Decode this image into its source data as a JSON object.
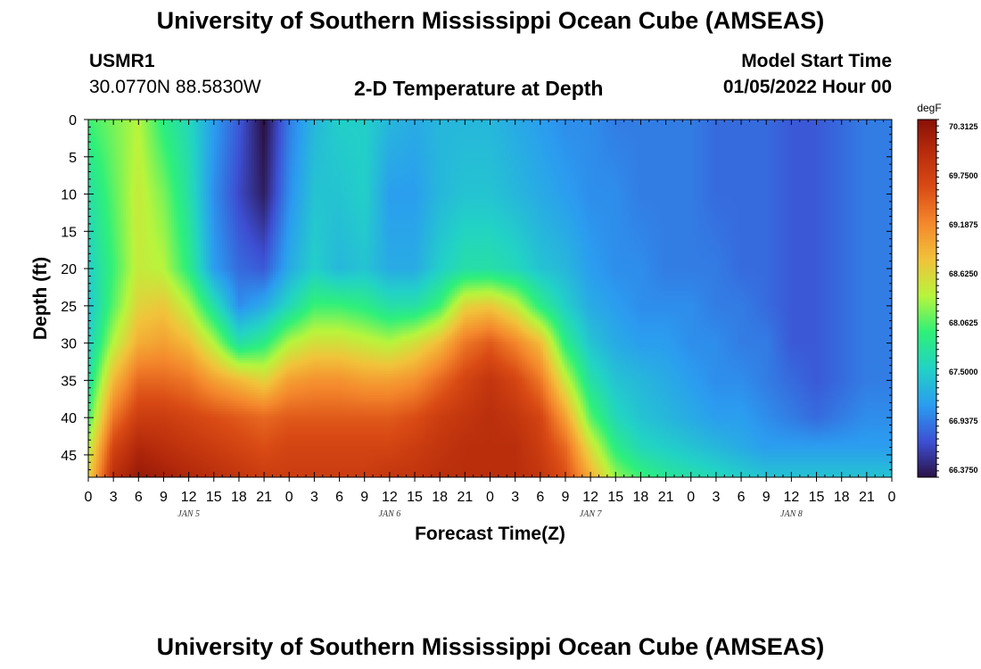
{
  "header": {
    "title": "University of Southern Mississippi Ocean Cube (AMSEAS)",
    "station": "USMR1",
    "coords": "30.0770N  88.5830W",
    "subtitle": "2-D Temperature at Depth",
    "model_label": "Model Start Time",
    "model_time": "01/05/2022 Hour 00"
  },
  "footer": {
    "title": "University of Southern Mississippi Ocean Cube (AMSEAS)"
  },
  "chart_data": {
    "type": "heatmap",
    "title": "2-D Temperature at Depth",
    "xlabel": "Forecast Time(Z)",
    "ylabel": "Depth (ft)",
    "colorbar_unit": "degF",
    "x_unit": "hours since 01/05/2022 00Z",
    "xlim": [
      0,
      96
    ],
    "ylim": [
      0,
      48
    ],
    "y_inverted": true,
    "x_ticks": [
      0,
      3,
      6,
      9,
      12,
      15,
      18,
      21,
      24,
      27,
      30,
      33,
      36,
      39,
      42,
      45,
      48,
      51,
      54,
      57,
      60,
      63,
      66,
      69,
      72,
      75,
      78,
      81,
      84,
      87,
      90,
      93,
      96
    ],
    "x_tick_labels": [
      "0",
      "3",
      "6",
      "9",
      "12",
      "15",
      "18",
      "21",
      "0",
      "3",
      "6",
      "9",
      "12",
      "15",
      "18",
      "21",
      "0",
      "3",
      "6",
      "9",
      "12",
      "15",
      "18",
      "21",
      "0",
      "3",
      "6",
      "9",
      "12",
      "15",
      "18",
      "21",
      "0"
    ],
    "day_labels": [
      {
        "x": 12,
        "label": "JAN 5"
      },
      {
        "x": 36,
        "label": "JAN 6"
      },
      {
        "x": 60,
        "label": "JAN 7"
      },
      {
        "x": 84,
        "label": "JAN 8"
      }
    ],
    "y_ticks": [
      0,
      5,
      10,
      15,
      20,
      25,
      30,
      35,
      40,
      45
    ],
    "y_tick_labels": [
      "0",
      "5",
      "10",
      "15",
      "20",
      "25",
      "30",
      "35",
      "40",
      "45"
    ],
    "colorbar_levels": [
      "70.3125",
      "69.7500",
      "69.1875",
      "68.6250",
      "68.0625",
      "67.5000",
      "66.9375",
      "66.3750"
    ],
    "colorbar_values": [
      70.3125,
      69.75,
      69.1875,
      68.625,
      68.0625,
      67.5,
      66.9375,
      66.375
    ],
    "colorscale": [
      "#2a0f3f",
      "#3d4fd3",
      "#2b9cf0",
      "#22d2c6",
      "#2ef07a",
      "#b8f53c",
      "#f2c23a",
      "#f4872c",
      "#d94a14",
      "#b52a0b",
      "#7e0b06"
    ],
    "vrange": [
      66.1,
      70.5
    ],
    "temperature_knots": {
      "hours": [
        0,
        3,
        6,
        9,
        12,
        15,
        18,
        21,
        24,
        27,
        30,
        33,
        36,
        39,
        42,
        45,
        48,
        51,
        54,
        57,
        60,
        63,
        66,
        69,
        72,
        75,
        78,
        81,
        84,
        87,
        90,
        93,
        96
      ],
      "depths": [
        0,
        10,
        20,
        25,
        30,
        35,
        40,
        44,
        48
      ],
      "values": [
        [
          67.9,
          67.6,
          67.4,
          67.3,
          67.4,
          67.6,
          67.9,
          68.3,
          68.6
        ],
        [
          68.1,
          68.0,
          67.9,
          68.0,
          68.3,
          68.8,
          69.3,
          69.7,
          70.0
        ],
        [
          68.3,
          68.4,
          68.4,
          68.6,
          68.9,
          69.4,
          69.8,
          70.1,
          70.3
        ],
        [
          67.8,
          68.1,
          68.3,
          68.7,
          69.0,
          69.4,
          69.8,
          70.0,
          70.2
        ],
        [
          67.5,
          67.6,
          67.8,
          68.3,
          68.8,
          69.3,
          69.7,
          69.9,
          70.1
        ],
        [
          67.0,
          66.9,
          67.0,
          67.6,
          68.3,
          69.0,
          69.6,
          69.8,
          70.0
        ],
        [
          66.6,
          66.5,
          66.7,
          66.9,
          67.6,
          68.8,
          69.5,
          69.7,
          69.9
        ],
        [
          66.1,
          66.2,
          66.6,
          67.1,
          67.8,
          68.6,
          69.4,
          69.6,
          69.8
        ],
        [
          66.8,
          66.9,
          67.1,
          67.5,
          68.3,
          69.0,
          69.5,
          69.7,
          69.8
        ],
        [
          67.2,
          67.3,
          67.4,
          67.9,
          68.5,
          69.1,
          69.5,
          69.7,
          69.8
        ],
        [
          67.4,
          67.3,
          67.2,
          67.9,
          68.5,
          69.1,
          69.5,
          69.7,
          69.8
        ],
        [
          67.4,
          67.4,
          67.3,
          67.8,
          68.4,
          69.0,
          69.5,
          69.7,
          69.8
        ],
        [
          67.2,
          67.0,
          67.1,
          67.6,
          68.3,
          69.0,
          69.5,
          69.7,
          69.9
        ],
        [
          67.1,
          67.0,
          67.1,
          67.6,
          68.5,
          69.1,
          69.6,
          69.8,
          69.9
        ],
        [
          67.2,
          67.2,
          67.4,
          67.9,
          68.8,
          69.4,
          69.8,
          69.9,
          70.0
        ],
        [
          67.2,
          67.3,
          67.6,
          68.6,
          69.3,
          69.7,
          69.9,
          70.0,
          70.0
        ],
        [
          67.2,
          67.3,
          67.6,
          68.7,
          69.5,
          69.9,
          70.0,
          70.0,
          70.0
        ],
        [
          67.1,
          67.2,
          67.5,
          68.4,
          69.2,
          69.7,
          69.9,
          70.0,
          70.0
        ],
        [
          67.0,
          67.1,
          67.3,
          67.8,
          68.8,
          69.3,
          69.7,
          69.8,
          69.9
        ],
        [
          66.9,
          67.0,
          67.2,
          67.4,
          67.8,
          68.4,
          69.0,
          69.4,
          69.6
        ],
        [
          66.9,
          66.9,
          67.0,
          67.1,
          67.3,
          67.6,
          68.0,
          68.5,
          68.9
        ],
        [
          66.8,
          66.9,
          66.9,
          67.0,
          67.1,
          67.3,
          67.5,
          67.8,
          68.2
        ],
        [
          66.8,
          66.8,
          66.9,
          66.9,
          67.0,
          67.2,
          67.3,
          67.5,
          67.9
        ],
        [
          66.8,
          66.8,
          66.8,
          66.9,
          67.0,
          67.1,
          67.2,
          67.4,
          67.7
        ],
        [
          66.8,
          66.8,
          66.8,
          66.9,
          66.9,
          67.0,
          67.1,
          67.3,
          67.6
        ],
        [
          66.7,
          66.7,
          66.8,
          66.8,
          66.9,
          66.9,
          67.0,
          67.2,
          67.5
        ],
        [
          66.7,
          66.7,
          66.7,
          66.8,
          66.8,
          66.9,
          67.0,
          67.1,
          67.4
        ],
        [
          66.7,
          66.7,
          66.7,
          66.7,
          66.8,
          66.8,
          66.9,
          67.0,
          67.3
        ],
        [
          66.6,
          66.6,
          66.6,
          66.6,
          66.6,
          66.7,
          66.8,
          67.0,
          67.3
        ],
        [
          66.6,
          66.6,
          66.6,
          66.6,
          66.6,
          66.6,
          66.7,
          67.0,
          67.3
        ],
        [
          66.7,
          66.7,
          66.7,
          66.7,
          66.7,
          66.7,
          66.8,
          67.0,
          67.3
        ],
        [
          66.8,
          66.8,
          66.8,
          66.8,
          66.8,
          66.8,
          66.9,
          67.0,
          67.3
        ],
        [
          66.8,
          66.8,
          66.8,
          66.8,
          66.8,
          66.8,
          66.9,
          67.0,
          67.3
        ]
      ]
    }
  }
}
